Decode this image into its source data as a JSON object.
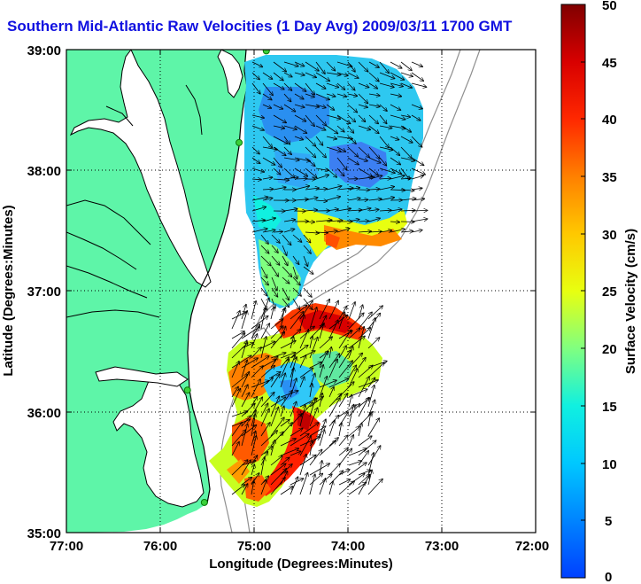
{
  "title": "Southern Mid-Atlantic Raw Velocities (1 Day Avg) 2009/03/11 1700 GMT",
  "xlabel": "Longitude (Degrees:Minutes)",
  "ylabel": "Latitude (Degrees:Minutes)",
  "colorbar_label": "Surface Velocity (cm/s)",
  "x_ticks": [
    "77:00",
    "76:00",
    "75:00",
    "74:00",
    "73:00",
    "72:00"
  ],
  "y_ticks": [
    "39:00",
    "38:00",
    "37:00",
    "36:00",
    "35:00"
  ],
  "colorbar_ticks": [
    "50",
    "45",
    "40",
    "35",
    "30",
    "25",
    "20",
    "15",
    "10",
    "5",
    "0"
  ],
  "colors": {
    "land": "#5ef5a8",
    "title": "#1010e0",
    "bathymetry": "#909090",
    "station": "#3ad03a"
  },
  "legend": {
    "colorbar_range_cm_s": [
      0,
      50
    ],
    "colormap": "jet"
  },
  "map": {
    "lon_range": [
      -77,
      -72
    ],
    "lat_range": [
      35,
      39
    ],
    "grid": true,
    "stations": [
      {
        "lon": -74.87,
        "lat": 38.99
      },
      {
        "lon": -75.16,
        "lat": 38.23
      },
      {
        "lon": -75.71,
        "lat": 36.18
      },
      {
        "lon": -75.53,
        "lat": 35.25
      }
    ]
  }
}
